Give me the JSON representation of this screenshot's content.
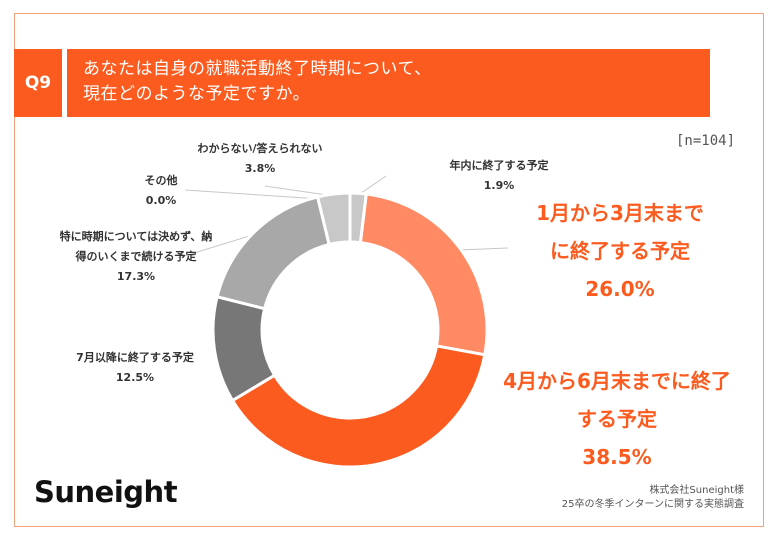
{
  "question": {
    "badge": "Q9",
    "line1": "あなたは自身の就職活動終了時期について、",
    "line2": "現在どのような予定ですか。"
  },
  "sample_size": "[n=104]",
  "chart_data": {
    "type": "pie",
    "donut": true,
    "categories": [
      "年内に終了する予定",
      "1月から3月末までに終了する予定",
      "4月から6月末までに終了する予定",
      "7月以降に終了する予定",
      "特に時期については決めず、納得のいくまで続ける予定",
      "その他",
      "わからない/答えられない"
    ],
    "values": [
      1.9,
      26.0,
      38.5,
      12.5,
      17.3,
      0.0,
      3.8
    ],
    "colors": [
      "#c8c8c8",
      "#ff8a63",
      "#fb5b1f",
      "#777777",
      "#a8a8a8",
      "#d8d8d8",
      "#c8c8c8"
    ],
    "value_labels": [
      "1.9%",
      "26.0%",
      "38.5%",
      "12.5%",
      "17.3%",
      "0.0%",
      "3.8%"
    ],
    "labels": {
      "end_of_year": {
        "line1": "年内に終了する予定",
        "value": "1.9%"
      },
      "jan_mar": {
        "line1": "1月から3月末まで",
        "line2": "に終了する予定",
        "value": "26.0%"
      },
      "apr_jun": {
        "line1": "4月から6月末までに終了",
        "line2": "する予定",
        "value": "38.5%"
      },
      "after_jul": {
        "line1": "7月以降に終了する予定",
        "value": "12.5%"
      },
      "undecided": {
        "line1": "特に時期については決めず、納",
        "line2": "得のいくまで続ける予定",
        "value": "17.3%"
      },
      "other": {
        "line1": "その他",
        "value": "0.0%"
      },
      "unknown": {
        "line1": "わからない/答えられない",
        "value": "3.8%"
      }
    }
  },
  "footer": {
    "logo": "Suneight",
    "credit_line1": "株式会社Suneight様",
    "credit_line2": "25卒の冬季インターンに関する実態調査"
  }
}
